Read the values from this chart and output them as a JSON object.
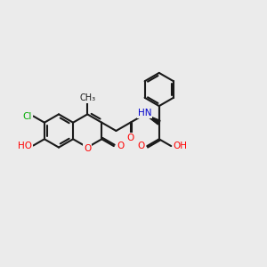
{
  "bg_color": "#ebebeb",
  "bond_color": "#1a1a1a",
  "bond_width": 1.5,
  "atom_colors": {
    "O": "#ff0000",
    "N": "#0000cd",
    "Cl": "#00aa00",
    "C": "#1a1a1a"
  },
  "font_size": 7.5,
  "figsize": [
    3.0,
    3.0
  ],
  "dpi": 100,
  "xlim": [
    0,
    10
  ],
  "ylim": [
    2,
    8
  ]
}
